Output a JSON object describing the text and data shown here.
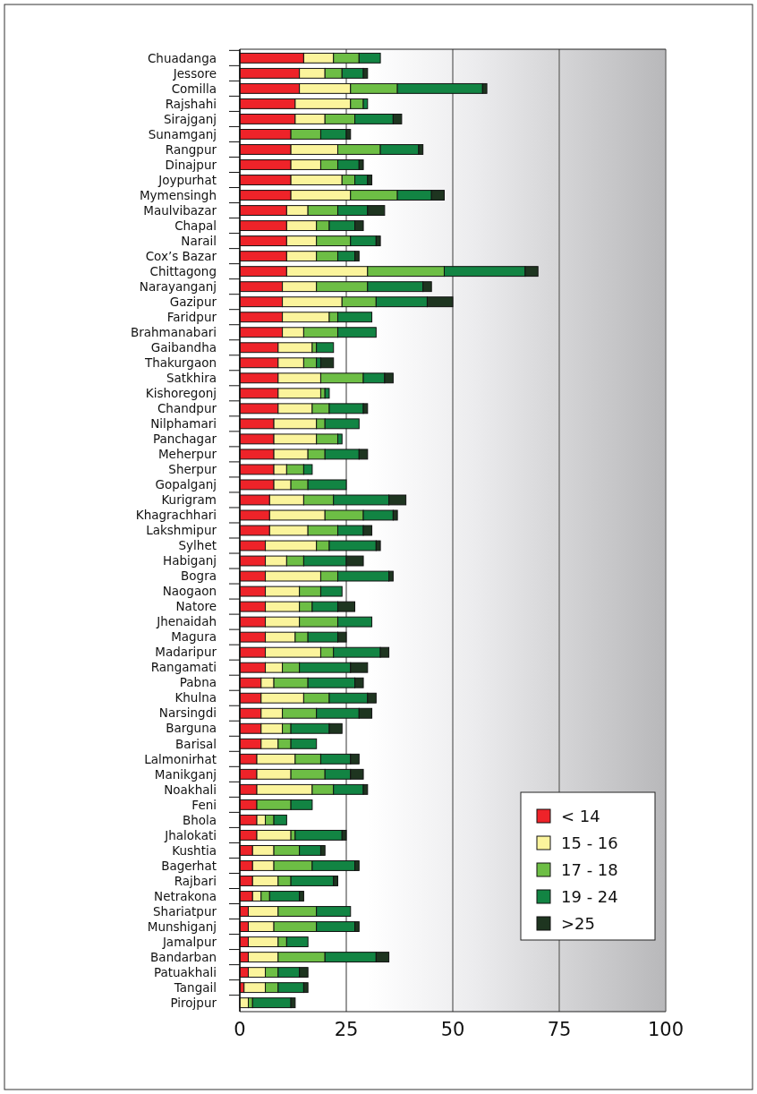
{
  "chart_data": {
    "type": "bar",
    "orientation": "horizontal",
    "stacked": true,
    "categories": [
      "Chuadanga",
      "Jessore",
      "Comilla",
      "Rajshahi",
      "Sirajganj",
      "Sunamganj",
      "Rangpur",
      "Dinajpur",
      "Joypurhat",
      "Mymensingh",
      "Maulvibazar",
      "Chapal",
      "Narail",
      "Cox’s Bazar",
      "Chittagong",
      "Narayanganj",
      "Gazipur",
      "Faridpur",
      "Brahmanabari",
      "Gaibandha",
      "Thakurgaon",
      "Satkhira",
      "Kishoregonj",
      "Chandpur",
      "Nilphamari",
      "Panchagar",
      "Meherpur",
      "Sherpur",
      "Gopalganj",
      "Kurigram",
      "Khagrachhari",
      "Lakshmipur",
      "Sylhet",
      "Habiganj",
      "Bogra",
      "Naogaon",
      "Natore",
      "Jhenaidah",
      "Magura",
      "Madaripur",
      "Rangamati",
      "Pabna",
      "Khulna",
      "Narsingdi",
      "Barguna",
      "Barisal",
      "Lalmonirhat",
      "Manikganj",
      "Noakhali",
      "Feni",
      "Bhola",
      "Jhalokati",
      "Kushtia",
      "Bagerhat",
      "Rajbari",
      "Netrakona",
      "Shariatpur",
      "Munshiganj",
      "Jamalpur",
      "Bandarban",
      "Patuakhali",
      "Tangail",
      "Pirojpur"
    ],
    "series": [
      {
        "name": "< 14",
        "color": "#ee2329",
        "values": [
          15,
          14,
          14,
          13,
          13,
          12,
          12,
          12,
          12,
          12,
          11,
          11,
          11,
          11,
          11,
          10,
          10,
          10,
          10,
          9,
          9,
          9,
          9,
          9,
          8,
          8,
          8,
          8,
          8,
          7,
          7,
          7,
          6,
          6,
          6,
          6,
          6,
          6,
          6,
          6,
          6,
          5,
          5,
          5,
          5,
          5,
          4,
          4,
          4,
          4,
          4,
          4,
          3,
          3,
          3,
          3,
          2,
          2,
          2,
          2,
          2,
          1,
          0
        ]
      },
      {
        "name": "15 - 16",
        "color": "#fbf49c",
        "values": [
          7,
          6,
          12,
          13,
          7,
          0,
          11,
          7,
          12,
          14,
          5,
          7,
          7,
          7,
          19,
          8,
          14,
          11,
          5,
          8,
          6,
          10,
          10,
          8,
          10,
          10,
          8,
          3,
          4,
          8,
          13,
          9,
          12,
          5,
          13,
          8,
          8,
          8,
          7,
          13,
          4,
          3,
          10,
          5,
          5,
          4,
          9,
          8,
          13,
          0,
          2,
          8,
          5,
          5,
          6,
          2,
          7,
          6,
          7,
          7,
          4,
          5,
          2
        ]
      },
      {
        "name": "17 - 18",
        "color": "#6dbe45",
        "values": [
          6,
          4,
          11,
          3,
          7,
          7,
          10,
          4,
          3,
          11,
          7,
          3,
          8,
          5,
          18,
          12,
          8,
          2,
          8,
          1,
          3,
          10,
          1,
          4,
          2,
          5,
          4,
          4,
          4,
          7,
          9,
          7,
          3,
          4,
          4,
          5,
          3,
          9,
          3,
          3,
          4,
          8,
          6,
          8,
          2,
          3,
          6,
          8,
          5,
          8,
          2,
          1,
          6,
          9,
          3,
          2,
          9,
          10,
          2,
          11,
          3,
          3,
          1
        ]
      },
      {
        "name": "19 - 24",
        "color": "#128443",
        "values": [
          5,
          5,
          20,
          1,
          9,
          6,
          9,
          5,
          3,
          8,
          7,
          6,
          6,
          4,
          19,
          13,
          12,
          8,
          9,
          4,
          1,
          5,
          1,
          8,
          8,
          1,
          8,
          2,
          9,
          13,
          7,
          6,
          11,
          10,
          12,
          5,
          6,
          8,
          7,
          11,
          12,
          11,
          9,
          10,
          9,
          6,
          7,
          6,
          7,
          5,
          3,
          11,
          5,
          10,
          10,
          7,
          8,
          9,
          5,
          12,
          5,
          6,
          9
        ]
      },
      {
        "name": ">25",
        "color": "#1e3520",
        "values": [
          0,
          1,
          1,
          0,
          2,
          1,
          1,
          1,
          1,
          3,
          4,
          2,
          1,
          1,
          3,
          2,
          6,
          0,
          0,
          0,
          3,
          2,
          0,
          1,
          0,
          0,
          2,
          0,
          0,
          4,
          1,
          2,
          1,
          4,
          1,
          0,
          4,
          0,
          2,
          2,
          4,
          2,
          2,
          3,
          3,
          0,
          2,
          3,
          1,
          0,
          0,
          1,
          1,
          1,
          1,
          1,
          0,
          1,
          0,
          3,
          2,
          1,
          1
        ]
      }
    ],
    "xlim": [
      0,
      100
    ],
    "xticks": [
      0,
      25,
      50,
      75,
      100
    ],
    "grid": "x",
    "legend": "bottom right"
  }
}
